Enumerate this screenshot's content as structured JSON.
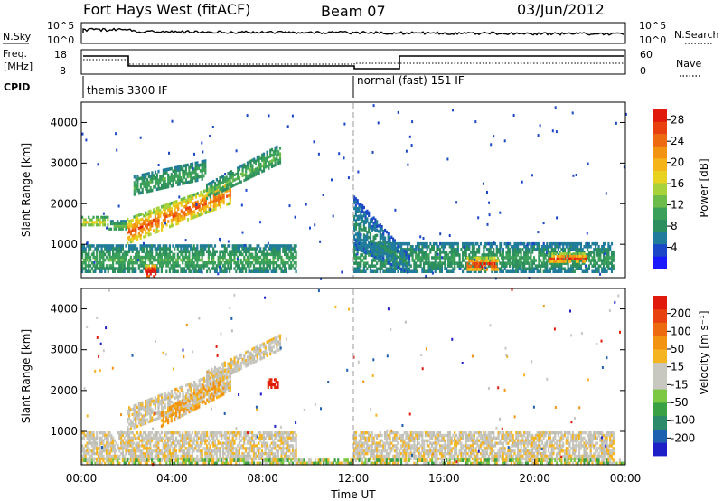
{
  "header": {
    "title": "Fort Hays West (fitACF)",
    "beam": "Beam 07",
    "date": "03/Jun/2012"
  },
  "upper_panels": {
    "nsky_label": "N.Sky",
    "nsearch_label": "N.Search",
    "noise_ticks": [
      "10^5",
      "10^0"
    ],
    "freq_label_1": "Freq.",
    "freq_label_2": "[MHz]",
    "freq_ticks": [
      "18",
      "8"
    ],
    "nave_ticks": [
      "60",
      "0"
    ],
    "nave_label": "Nave",
    "cpid_label": "CPID",
    "cpid_segments": [
      {
        "label": "themis 3300 IF",
        "start_hour": 0,
        "end_hour": 12
      },
      {
        "label": "normal (fast) 151 IF",
        "start_hour": 12,
        "end_hour": 24
      }
    ]
  },
  "chart_data": [
    {
      "type": "heatmap",
      "name": "power",
      "ylabel": "Slant Range [km]",
      "yticks": [
        "1000",
        "2000",
        "3000",
        "4000"
      ],
      "ylim": [
        180,
        4500
      ],
      "xlim_hours": [
        0,
        24
      ],
      "colorbar": {
        "label": "Power [dB]",
        "ticks": [
          "4",
          "8",
          "12",
          "16",
          "20",
          "24",
          "28"
        ],
        "range": [
          0,
          30
        ],
        "colors": [
          "#1a1aff",
          "#1c48c8",
          "#207c9a",
          "#2d8f5e",
          "#3aa05a",
          "#6dbb4b",
          "#a8d23a",
          "#e8d220",
          "#f5b417",
          "#f39312",
          "#ee6a10",
          "#e8410f",
          "#e01b0e"
        ]
      },
      "echo_bands": [
        {
          "t0": 0.0,
          "t1": 1.2,
          "r0": 1450,
          "r1": 1700,
          "level": 14
        },
        {
          "t0": 1.2,
          "t1": 2.0,
          "r0": 1350,
          "r1": 1600,
          "level": 10
        },
        {
          "t0": 2.0,
          "t1": 6.6,
          "r0": 1000,
          "r1": 1650,
          "r1_end": 2600,
          "r0_end": 2000,
          "level": 20
        },
        {
          "t0": 2.3,
          "t1": 5.5,
          "r0": 2200,
          "r1": 2700,
          "r0_end": 2600,
          "r1_end": 3100,
          "level": 9
        },
        {
          "t0": 5.5,
          "t1": 8.8,
          "r0": 2100,
          "r1": 2500,
          "r0_end": 3000,
          "r1_end": 3500,
          "level": 10
        },
        {
          "t0": 0.0,
          "t1": 9.5,
          "r0": 300,
          "r1": 1000,
          "level": 9
        },
        {
          "t0": 2.8,
          "t1": 3.3,
          "r0": 180,
          "r1": 500,
          "level": 27
        },
        {
          "t0": 12.0,
          "t1": 23.5,
          "r0": 300,
          "r1": 1050,
          "level": 8
        },
        {
          "t0": 17.0,
          "t1": 18.4,
          "r0": 350,
          "r1": 700,
          "level": 22
        },
        {
          "t0": 20.6,
          "t1": 22.3,
          "r0": 550,
          "r1": 800,
          "level": 21
        },
        {
          "t0": 12.0,
          "t1": 14.5,
          "r0": 900,
          "r1": 2200,
          "r0_end": 250,
          "r1_end": 700,
          "level": 6
        }
      ]
    },
    {
      "type": "heatmap",
      "name": "velocity",
      "ylabel": "Slant Range [km]",
      "yticks": [
        "1000",
        "2000",
        "3000",
        "4000"
      ],
      "ylim": [
        180,
        4500
      ],
      "xlim_hours": [
        0,
        24
      ],
      "xticks": [
        "00:00",
        "04:00",
        "08:00",
        "12:00",
        "16:00",
        "20:00",
        "00:00"
      ],
      "xlabel": "Time UT",
      "colorbar": {
        "label": "Velocity [m s⁻¹]",
        "ticks": [
          "200",
          "100",
          "50",
          "15",
          "-15",
          "-50",
          "-100",
          "-200"
        ],
        "colors": [
          "#1f1fc8",
          "#1e5fb0",
          "#2a8a6a",
          "#3aa044",
          "#7dc843",
          "#c8c8c0",
          "#c8c8c0",
          "#f5b421",
          "#f39312",
          "#ee6a10",
          "#e8410f",
          "#e01b0e"
        ]
      },
      "echo_bands": [
        {
          "t0": 0.0,
          "t1": 9.5,
          "r0": 300,
          "r1": 1000,
          "vel": "grey"
        },
        {
          "t0": 2.0,
          "t1": 6.6,
          "r0": 1000,
          "r1": 1600,
          "r0_end": 2000,
          "r1_end": 2600,
          "vel": "grey"
        },
        {
          "t0": 3.5,
          "t1": 6.3,
          "r0": 1100,
          "r1": 1500,
          "r0_end": 1900,
          "r1_end": 2400,
          "vel": "orange"
        },
        {
          "t0": 5.5,
          "t1": 8.8,
          "r0": 2100,
          "r1": 2500,
          "r0_end": 3000,
          "r1_end": 3400,
          "vel": "grey"
        },
        {
          "t0": 8.2,
          "t1": 8.7,
          "r0": 2050,
          "r1": 2300,
          "vel": "red"
        },
        {
          "t0": 12.0,
          "t1": 23.5,
          "r0": 300,
          "r1": 1000,
          "vel": "grey"
        },
        {
          "t0": 0.0,
          "t1": 24.0,
          "r0": 180,
          "r1": 330,
          "vel": "green"
        }
      ]
    }
  ]
}
